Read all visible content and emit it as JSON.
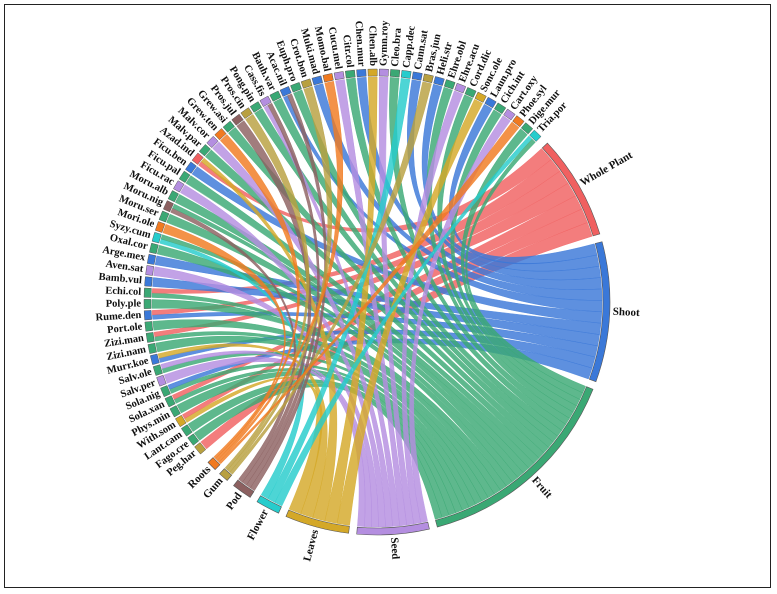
{
  "chart_data": {
    "type": "chord",
    "parts": [
      {
        "name": "Whole Plant",
        "color": "#f06060"
      },
      {
        "name": "Shoot",
        "color": "#3a78d8"
      },
      {
        "name": "Fruit",
        "color": "#3aa874"
      },
      {
        "name": "Seed",
        "color": "#b48ee0"
      },
      {
        "name": "Leaves",
        "color": "#d4a828"
      },
      {
        "name": "Flower",
        "color": "#26cccc"
      },
      {
        "name": "Pod",
        "color": "#8c6060"
      },
      {
        "name": "Gum",
        "color": "#b8a040"
      },
      {
        "name": "Roots",
        "color": "#f07a20"
      }
    ],
    "species": [
      "Peg.har",
      "Fago.cre",
      "Lant.cam",
      "With.som",
      "Phys.min",
      "Sola.xan",
      "Sola.nig",
      "Salv.per",
      "Salv.ole",
      "Murr.koe",
      "Zizi.nam",
      "Zizi.man",
      "Port.ole",
      "Rume.den",
      "Poly.ple",
      "Echi.col",
      "Bamb.vul",
      "Aven.sat",
      "Arge.mex",
      "Oxal.cor",
      "Syzy.cum",
      "Mori.ole",
      "Moru.ser",
      "Moru.nig",
      "Moru.alb",
      "Ficu.rac",
      "Ficu.pal",
      "Ficu.ben",
      "Azad.ind",
      "Malv.par",
      "Malv.cor",
      "Grew.ten",
      "Grew.asi",
      "Pros.jul",
      "Pros.cin",
      "Pong.pin",
      "Cass.fis",
      "Bauh.var",
      "Acac.nil",
      "Euph.pro",
      "Crot.bon",
      "Muki.mad",
      "Momo.bal",
      "Cucu.mel",
      "Citr.col",
      "Chen.mur",
      "Chen.alb",
      "Gymn.roy",
      "Cleo.bra",
      "Capp.dec",
      "Cann.sat",
      "Bras.jun",
      "Heli.str",
      "Ehre.obl",
      "Ehre.acu",
      "Cord.dic",
      "Sonc.ole",
      "Laun.pro",
      "Cich.int",
      "Cart.oxy",
      "Phoe.syl",
      "Dige.mur",
      "Tria.por"
    ],
    "species_colors": [
      "#b8a040",
      "#3aa874",
      "#3aa874",
      "#d4a828",
      "#3aa874",
      "#3aa874",
      "#3aa874",
      "#b48ee0",
      "#3aa874",
      "#3a78d8",
      "#3aa874",
      "#3aa874",
      "#3aa874",
      "#3a78d8",
      "#3aa874",
      "#3aa874",
      "#3a78d8",
      "#b48ee0",
      "#3a78d8",
      "#3aa874",
      "#26cccc",
      "#f07a20",
      "#3aa874",
      "#8c6060",
      "#3aa874",
      "#b48ee0",
      "#3aa874",
      "#3a78d8",
      "#f06060",
      "#3aa874",
      "#b48ee0",
      "#f07a20",
      "#3aa874",
      "#8c6060",
      "#b8a040",
      "#3aa874",
      "#b48ee0",
      "#3aa874",
      "#3a78d8",
      "#3aa874",
      "#b8a040",
      "#3a78d8",
      "#f07a20",
      "#b48ee0",
      "#3aa874",
      "#3a78d8",
      "#d4a828",
      "#b48ee0",
      "#3aa874",
      "#26cccc",
      "#3a78d8",
      "#b8a040",
      "#3a78d8",
      "#3aa874",
      "#b48ee0",
      "#3aa874",
      "#d4a828",
      "#3a78d8",
      "#3aa874",
      "#b48ee0",
      "#f07a20",
      "#3aa874",
      "#26cccc"
    ],
    "links": [
      [
        "Whole Plant",
        "Peg.har"
      ],
      [
        "Fruit",
        "Fago.cre"
      ],
      [
        "Fruit",
        "Lant.cam"
      ],
      [
        "Leaves",
        "With.som"
      ],
      [
        "Whole Plant",
        "With.som"
      ],
      [
        "Fruit",
        "Phys.min"
      ],
      [
        "Fruit",
        "Sola.xan"
      ],
      [
        "Whole Plant",
        "Sola.xan"
      ],
      [
        "Fruit",
        "Sola.nig"
      ],
      [
        "Shoot",
        "Sola.nig"
      ],
      [
        "Seed",
        "Salv.per"
      ],
      [
        "Fruit",
        "Salv.ole"
      ],
      [
        "Seed",
        "Salv.ole"
      ],
      [
        "Shoot",
        "Murr.koe"
      ],
      [
        "Leaves",
        "Murr.koe"
      ],
      [
        "Fruit",
        "Zizi.nam"
      ],
      [
        "Fruit",
        "Zizi.man"
      ],
      [
        "Whole Plant",
        "Zizi.man"
      ],
      [
        "Fruit",
        "Port.ole"
      ],
      [
        "Shoot",
        "Rume.den"
      ],
      [
        "Whole Plant",
        "Rume.den"
      ],
      [
        "Fruit",
        "Poly.ple"
      ],
      [
        "Fruit",
        "Echi.col"
      ],
      [
        "Whole Plant",
        "Echi.col"
      ],
      [
        "Shoot",
        "Bamb.vul"
      ],
      [
        "Seed",
        "Aven.sat"
      ],
      [
        "Shoot",
        "Arge.mex"
      ],
      [
        "Fruit",
        "Oxal.cor"
      ],
      [
        "Flower",
        "Syzy.cum"
      ],
      [
        "Fruit",
        "Syzy.cum"
      ],
      [
        "Roots",
        "Mori.ole"
      ],
      [
        "Fruit",
        "Moru.ser"
      ],
      [
        "Pod",
        "Moru.nig"
      ],
      [
        "Fruit",
        "Moru.nig"
      ],
      [
        "Fruit",
        "Moru.alb"
      ],
      [
        "Seed",
        "Ficu.rac"
      ],
      [
        "Fruit",
        "Ficu.pal"
      ],
      [
        "Shoot",
        "Ficu.ben"
      ],
      [
        "Whole Plant",
        "Azad.ind"
      ],
      [
        "Leaves",
        "Azad.ind"
      ],
      [
        "Fruit",
        "Malv.par"
      ],
      [
        "Seed",
        "Malv.cor"
      ],
      [
        "Roots",
        "Grew.ten"
      ],
      [
        "Fruit",
        "Grew.asi"
      ],
      [
        "Pod",
        "Pros.jul"
      ],
      [
        "Gum",
        "Pros.cin"
      ],
      [
        "Fruit",
        "Pong.pin"
      ],
      [
        "Seed",
        "Cass.fis"
      ],
      [
        "Pod",
        "Cass.fis"
      ],
      [
        "Fruit",
        "Bauh.var"
      ],
      [
        "Shoot",
        "Acac.nil"
      ],
      [
        "Pod",
        "Acac.nil"
      ],
      [
        "Fruit",
        "Euph.pro"
      ],
      [
        "Gum",
        "Crot.bon"
      ],
      [
        "Shoot",
        "Muki.mad"
      ],
      [
        "Roots",
        "Momo.bal"
      ],
      [
        "Seed",
        "Cucu.mel"
      ],
      [
        "Fruit",
        "Citr.col"
      ],
      [
        "Shoot",
        "Chen.mur"
      ],
      [
        "Leaves",
        "Chen.alb"
      ],
      [
        "Seed",
        "Gymn.roy"
      ],
      [
        "Fruit",
        "Cleo.bra"
      ],
      [
        "Flower",
        "Capp.dec"
      ],
      [
        "Shoot",
        "Cann.sat"
      ],
      [
        "Gum",
        "Bras.jun"
      ],
      [
        "Shoot",
        "Heli.str"
      ],
      [
        "Fruit",
        "Ehre.obl"
      ],
      [
        "Seed",
        "Ehre.acu"
      ],
      [
        "Fruit",
        "Cord.dic"
      ],
      [
        "Leaves",
        "Sonc.ole"
      ],
      [
        "Shoot",
        "Laun.pro"
      ],
      [
        "Fruit",
        "Cich.int"
      ],
      [
        "Seed",
        "Cart.oxy"
      ],
      [
        "Roots",
        "Phoe.syl"
      ],
      [
        "Fruit",
        "Dige.mur"
      ],
      [
        "Flower",
        "Tria.por"
      ],
      [
        "Fruit",
        "Tria.por"
      ]
    ]
  }
}
